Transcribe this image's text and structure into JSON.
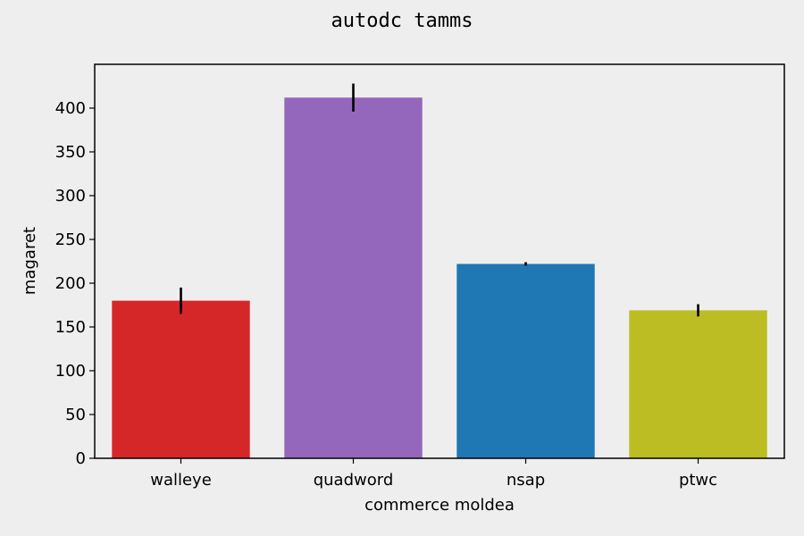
{
  "chart_data": {
    "type": "bar",
    "title": "autodc tamms",
    "xlabel": "commerce moldea",
    "ylabel": "magaret",
    "categories": [
      "walleye",
      "quadword",
      "nsap",
      "ptwc"
    ],
    "values": [
      180,
      412,
      222,
      169
    ],
    "errors": [
      15,
      16,
      2,
      7
    ],
    "colors": [
      "#d62728",
      "#9467bd",
      "#1f77b4",
      "#bcbd22"
    ],
    "ylim": [
      0,
      450
    ],
    "yticks": [
      0,
      50,
      100,
      150,
      200,
      250,
      300,
      350,
      400
    ],
    "grid": false,
    "legend": "none"
  }
}
